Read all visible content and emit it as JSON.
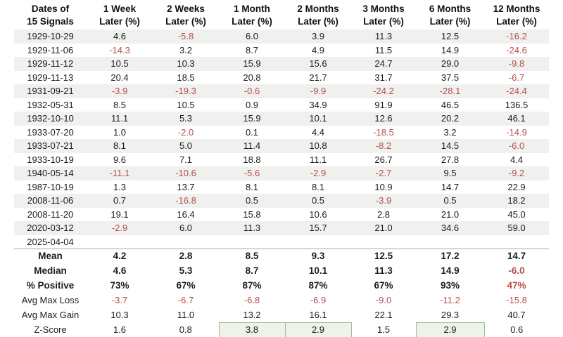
{
  "colors": {
    "text": "#1c1c1c",
    "negative": "#b3504d",
    "stripe": "#f0f0ee",
    "divider": "#a6a6a6",
    "highlight_fill": "#edf3e8",
    "highlight_border": "#a3bb9a"
  },
  "chart_data": {
    "type": "table",
    "columns": [
      {
        "line1": "Dates of",
        "line2": "15 Signals"
      },
      {
        "line1": "1 Week",
        "line2": "Later (%)"
      },
      {
        "line1": "2 Weeks",
        "line2": "Later (%)"
      },
      {
        "line1": "1 Month",
        "line2": "Later (%)"
      },
      {
        "line1": "2 Months",
        "line2": "Later (%)"
      },
      {
        "line1": "3 Months",
        "line2": "Later (%)"
      },
      {
        "line1": "6 Months",
        "line2": "Later (%)"
      },
      {
        "line1": "12 Months",
        "line2": "Later (%)"
      }
    ],
    "rows": [
      {
        "date": "1929-10-29",
        "values": [
          "4.6",
          "-5.8",
          "6.0",
          "3.9",
          "11.3",
          "12.5",
          "-16.2"
        ]
      },
      {
        "date": "1929-11-06",
        "values": [
          "-14.3",
          "3.2",
          "8.7",
          "4.9",
          "11.5",
          "14.9",
          "-24.6"
        ]
      },
      {
        "date": "1929-11-12",
        "values": [
          "10.5",
          "10.3",
          "15.9",
          "15.6",
          "24.7",
          "29.0",
          "-9.8"
        ]
      },
      {
        "date": "1929-11-13",
        "values": [
          "20.4",
          "18.5",
          "20.8",
          "21.7",
          "31.7",
          "37.5",
          "-6.7"
        ]
      },
      {
        "date": "1931-09-21",
        "values": [
          "-3.9",
          "-19.3",
          "-0.6",
          "-9.9",
          "-24.2",
          "-28.1",
          "-24.4"
        ]
      },
      {
        "date": "1932-05-31",
        "values": [
          "8.5",
          "10.5",
          "0.9",
          "34.9",
          "91.9",
          "46.5",
          "136.5"
        ]
      },
      {
        "date": "1932-10-10",
        "values": [
          "11.1",
          "5.3",
          "15.9",
          "10.1",
          "12.6",
          "20.2",
          "46.1"
        ]
      },
      {
        "date": "1933-07-20",
        "values": [
          "1.0",
          "-2.0",
          "0.1",
          "4.4",
          "-18.5",
          "3.2",
          "-14.9"
        ]
      },
      {
        "date": "1933-07-21",
        "values": [
          "8.1",
          "5.0",
          "11.4",
          "10.8",
          "-8.2",
          "14.5",
          "-6.0"
        ]
      },
      {
        "date": "1933-10-19",
        "values": [
          "9.6",
          "7.1",
          "18.8",
          "11.1",
          "26.7",
          "27.8",
          "4.4"
        ]
      },
      {
        "date": "1940-05-14",
        "values": [
          "-11.1",
          "-10.6",
          "-5.6",
          "-2.9",
          "-2.7",
          "9.5",
          "-9.2"
        ]
      },
      {
        "date": "1987-10-19",
        "values": [
          "1.3",
          "13.7",
          "8.1",
          "8.1",
          "10.9",
          "14.7",
          "22.9"
        ]
      },
      {
        "date": "2008-11-06",
        "values": [
          "0.7",
          "-16.8",
          "0.5",
          "0.5",
          "-3.9",
          "0.5",
          "18.2"
        ]
      },
      {
        "date": "2008-11-20",
        "values": [
          "19.1",
          "16.4",
          "15.8",
          "10.6",
          "2.8",
          "21.0",
          "45.0"
        ]
      },
      {
        "date": "2020-03-12",
        "values": [
          "-2.9",
          "6.0",
          "11.3",
          "15.7",
          "21.0",
          "34.6",
          "59.0"
        ]
      },
      {
        "date": "2025-04-04",
        "values": [
          "",
          "",
          "",
          "",
          "",
          "",
          ""
        ]
      }
    ],
    "summary_rows": [
      {
        "label": "Mean",
        "bold": true,
        "values": [
          "4.2",
          "2.8",
          "8.5",
          "9.3",
          "12.5",
          "17.2",
          "14.7"
        ]
      },
      {
        "label": "Median",
        "bold": true,
        "values": [
          "4.6",
          "5.3",
          "8.7",
          "10.1",
          "11.3",
          "14.9",
          "-6.0"
        ]
      },
      {
        "label": "% Positive",
        "bold": true,
        "values": [
          "73%",
          "67%",
          "87%",
          "87%",
          "67%",
          "93%",
          "47%"
        ],
        "red_cols": [
          6
        ]
      },
      {
        "label": "Avg Max Loss",
        "bold": false,
        "values": [
          "-3.7",
          "-6.7",
          "-6.8",
          "-6.9",
          "-9.0",
          "-11.2",
          "-15.8"
        ]
      },
      {
        "label": "Avg Max Gain",
        "bold": false,
        "values": [
          "10.3",
          "11.0",
          "13.2",
          "16.1",
          "22.1",
          "29.3",
          "40.7"
        ]
      },
      {
        "label": "Z-Score",
        "bold": false,
        "values": [
          "1.6",
          "0.8",
          "3.8",
          "2.9",
          "1.5",
          "2.9",
          "0.6"
        ],
        "highlight_cols": [
          2,
          3,
          5
        ]
      }
    ]
  }
}
